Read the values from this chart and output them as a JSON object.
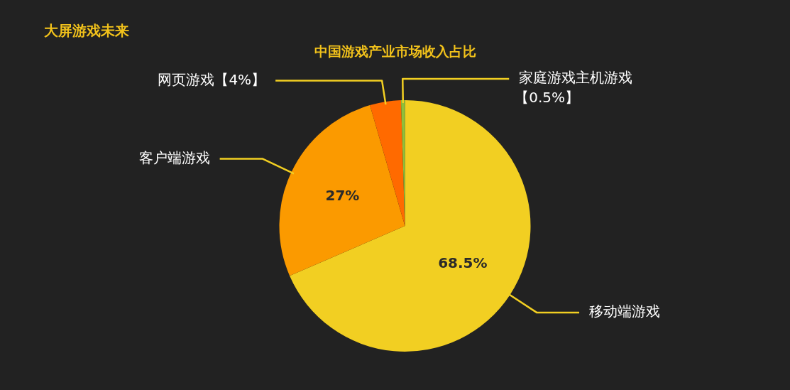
{
  "chart_data": {
    "type": "pie",
    "title": "大屏游戏未来",
    "subtitle": "中国游戏产业市场收入占比",
    "categories": [
      "移动端游戏",
      "客户端游戏",
      "网页游戏",
      "家庭游戏主机游戏"
    ],
    "values": [
      68.5,
      27,
      4,
      0.5
    ],
    "colors": [
      "#f2cf22",
      "#fb9a00",
      "#ff6a00",
      "#8fbf3a"
    ],
    "value_labels": [
      "68.5%",
      "27%",
      "【4%】",
      "【0.5%】"
    ],
    "legend": false
  }
}
